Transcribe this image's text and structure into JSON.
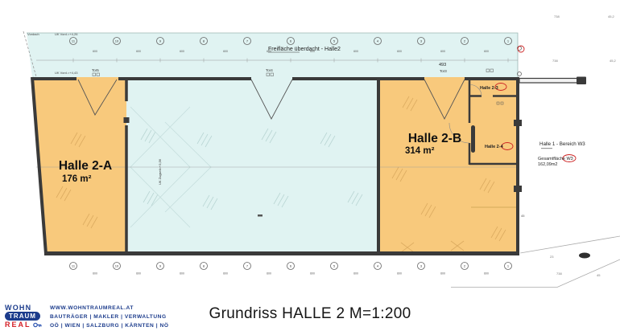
{
  "caption": "Grundriss HALLE 2 M=1:200",
  "colors": {
    "room_fill": "#f8c97c",
    "hall_fill": "#e0f3f2",
    "wall": "#3a3a3a",
    "red_marker": "#cc2222",
    "logo_blue": "#1c3c8c",
    "logo_red": "#d42027"
  },
  "plan": {
    "freiflaeche_label": "Freifläche überdacht - Halle2",
    "rooms": {
      "a": {
        "name": "Halle 2-A",
        "area": "176 m²"
      },
      "b": {
        "name": "Halle 2-B",
        "area": "314 m²"
      },
      "r3": {
        "name": "Halle 2-3"
      },
      "r4": {
        "name": "Halle 2-4"
      }
    },
    "labels": {
      "vordach": "Vordach",
      "uk_vord_top": "UK Vord.=+4,26",
      "uk_vord_low": "UK Vord.=+4,43",
      "uk_zugseil": "UK Zugseil=+3,56",
      "tor5": "Tor5",
      "tor4": "Tor4",
      "tor3": "Tor3",
      "dim_493": "493",
      "num_738": "738",
      "num_452": "45,2",
      "num_45": "45",
      "num_23": "23"
    },
    "side_note": {
      "title": "Halle 1 - Bereich W3",
      "label": "Gesamtfläche W3",
      "value": "162,09m2"
    },
    "grid": {
      "top": [
        "11",
        "10",
        "9",
        "8",
        "7",
        "6",
        "5",
        "4",
        "3",
        "2",
        "1"
      ],
      "bottom": [
        "11",
        "10",
        "9",
        "8",
        "7",
        "6",
        "5",
        "4",
        "3",
        "2",
        "1"
      ],
      "dims_top": [
        "600",
        "600",
        "600",
        "600",
        "600",
        "600",
        "600",
        "600",
        "600",
        "600"
      ],
      "dims_bottom": [
        "600",
        "600",
        "600",
        "600",
        "600",
        "600",
        "600",
        "600",
        "600",
        "600"
      ]
    }
  },
  "footer": {
    "logo": {
      "line1": "WOHN",
      "line2": "TRAUM",
      "line3": "REAL"
    },
    "website": "WWW.WOHNTRAUMREAL.AT",
    "services": "BAUTRÄGER | MAKLER | VERWALTUNG",
    "regions": "OÖ | WIEN | SALZBURG | KÄRNTEN | NÖ"
  }
}
